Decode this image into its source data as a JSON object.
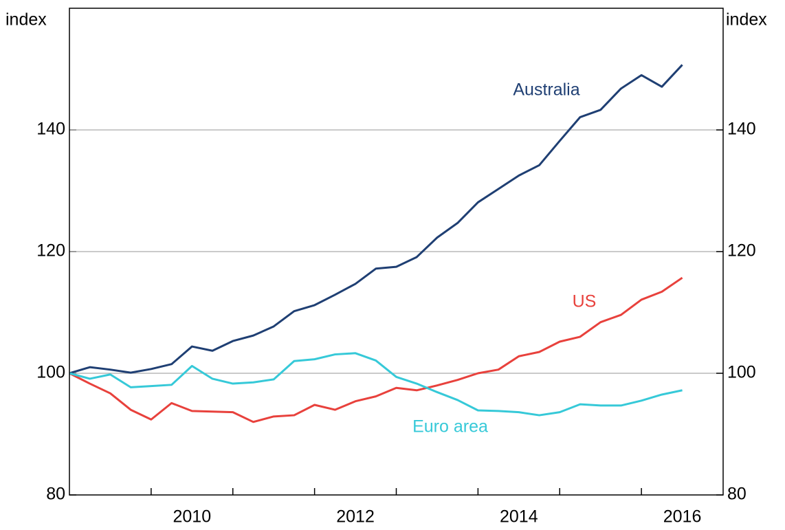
{
  "chart_data": {
    "type": "line",
    "y_label": "index",
    "y2_label": "index",
    "x": [
      2009,
      2009.25,
      2009.5,
      2009.75,
      2010,
      2010.25,
      2010.5,
      2010.75,
      2011,
      2011.25,
      2011.5,
      2011.75,
      2012,
      2012.25,
      2012.5,
      2012.75,
      2013,
      2013.25,
      2013.5,
      2013.75,
      2014,
      2014.25,
      2014.5,
      2014.75,
      2015,
      2015.25,
      2015.5,
      2015.75,
      2016,
      2016.25,
      2016.5
    ],
    "series": [
      {
        "name": "Australia",
        "color": "#1f3f73",
        "values": [
          100,
          101.0,
          100.6,
          100.1,
          100.7,
          101.5,
          104.4,
          103.7,
          105.3,
          106.2,
          107.7,
          110.2,
          111.2,
          112.9,
          114.7,
          117.2,
          117.5,
          119.1,
          122.3,
          124.7,
          128.1,
          130.3,
          132.5,
          134.2,
          138.2,
          142.1,
          143.3,
          146.8,
          149.0,
          147.1,
          150.7
        ]
      },
      {
        "name": "US",
        "color": "#e8413c",
        "values": [
          100,
          98.3,
          96.7,
          94.0,
          92.4,
          95.1,
          93.8,
          93.7,
          93.6,
          92.0,
          92.9,
          93.1,
          94.8,
          94.0,
          95.4,
          96.2,
          97.6,
          97.2,
          98.0,
          98.9,
          100.0,
          100.6,
          102.8,
          103.5,
          105.2,
          106.0,
          108.4,
          109.6,
          112.1,
          113.4,
          115.7
        ]
      },
      {
        "name": "Euro area",
        "color": "#36c9d8",
        "values": [
          100,
          99.1,
          99.8,
          97.7,
          97.9,
          98.1,
          101.2,
          99.1,
          98.3,
          98.5,
          99.0,
          102.0,
          102.3,
          103.1,
          103.3,
          102.1,
          99.4,
          98.3,
          96.9,
          95.6,
          93.9,
          93.8,
          93.6,
          93.1,
          93.6,
          94.9,
          94.7,
          94.7,
          95.5,
          96.5,
          97.2
        ]
      }
    ],
    "xlim": [
      2009,
      2017
    ],
    "xticks": [
      2010,
      2011,
      2012,
      2013,
      2014,
      2015,
      2016
    ],
    "xtick_labels": [
      "2010",
      "2012",
      "2014",
      "2016"
    ],
    "ylim": [
      80,
      160
    ],
    "yticks": [
      80,
      100,
      120,
      140
    ],
    "y2lim": [
      80,
      160
    ],
    "y2ticks": [
      80,
      100,
      120,
      140
    ],
    "grid": true
  }
}
